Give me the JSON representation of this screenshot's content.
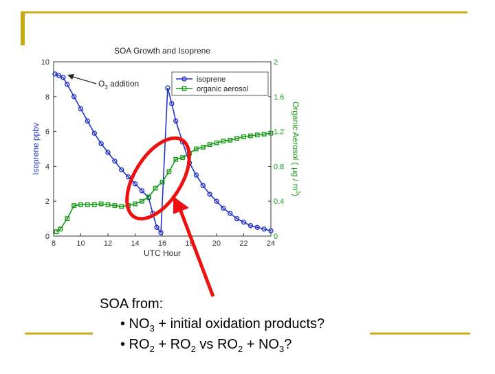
{
  "chart_data": {
    "type": "line",
    "title": "SOA Growth and Isoprene",
    "xlabel": "UTC Hour",
    "ylabel": "Isoprene ppbv",
    "y2label": [
      "Organic Aerosol ( μg / m",
      "3",
      ")"
    ],
    "annotation": [
      "O",
      "3",
      " addition"
    ],
    "xlim": [
      8,
      24
    ],
    "xticks": [
      8,
      10,
      12,
      14,
      16,
      18,
      20,
      22,
      24
    ],
    "ylim": [
      0,
      10
    ],
    "yticks": [
      0,
      2,
      4,
      6,
      8,
      10
    ],
    "y2lim": [
      0,
      2
    ],
    "y2ticks": [
      0,
      0.4,
      0.8,
      1.2,
      1.6,
      2
    ],
    "grid": false,
    "legend": "upper right",
    "series": [
      {
        "name": "isoprene",
        "color": "#2233cc",
        "marker": "circle",
        "axis": "y",
        "x": [
          8.1,
          8.4,
          8.7,
          9.0,
          9.5,
          10,
          10.5,
          11,
          11.5,
          12,
          12.5,
          13,
          13.5,
          14,
          14.5,
          15,
          15.3,
          15.6,
          15.9,
          16.4,
          16.7,
          17,
          17.5,
          18,
          18.5,
          19,
          19.5,
          20,
          20.5,
          21,
          21.5,
          22,
          22.5,
          23,
          23.5,
          24
        ],
        "values": [
          9.3,
          9.2,
          9.1,
          8.7,
          8.0,
          7.3,
          6.6,
          5.9,
          5.3,
          4.8,
          4.3,
          3.8,
          3.4,
          3.0,
          2.6,
          2.2,
          1.3,
          0.5,
          0.2,
          8.5,
          7.6,
          6.6,
          5.4,
          4.2,
          3.5,
          2.9,
          2.4,
          2.0,
          1.6,
          1.3,
          1.0,
          0.8,
          0.6,
          0.5,
          0.4,
          0.3
        ]
      },
      {
        "name": "organic aerosol",
        "color": "#189a18",
        "marker": "square",
        "axis": "y2",
        "x": [
          8.2,
          8.5,
          9,
          9.5,
          10,
          10.5,
          11,
          11.5,
          12,
          12.5,
          13,
          13.5,
          14,
          14.5,
          15,
          15.5,
          16,
          16.5,
          17,
          17.5,
          18,
          18.5,
          19,
          19.5,
          20,
          20.5,
          21,
          21.5,
          22,
          22.5,
          23,
          23.5,
          24
        ],
        "values": [
          0.05,
          0.08,
          0.2,
          0.35,
          0.36,
          0.36,
          0.36,
          0.37,
          0.36,
          0.35,
          0.34,
          0.35,
          0.37,
          0.4,
          0.45,
          0.55,
          0.62,
          0.74,
          0.88,
          0.9,
          0.95,
          1.0,
          1.02,
          1.05,
          1.07,
          1.09,
          1.1,
          1.12,
          1.14,
          1.15,
          1.16,
          1.17,
          1.18
        ]
      }
    ]
  },
  "slide_text": {
    "heading": "SOA from:",
    "bullets": [
      [
        "• NO",
        "3",
        " + initial oxidation products?"
      ],
      [
        "• RO",
        "2",
        " + RO",
        "2",
        " vs RO",
        "2",
        " + NO",
        "3",
        "?"
      ]
    ]
  }
}
